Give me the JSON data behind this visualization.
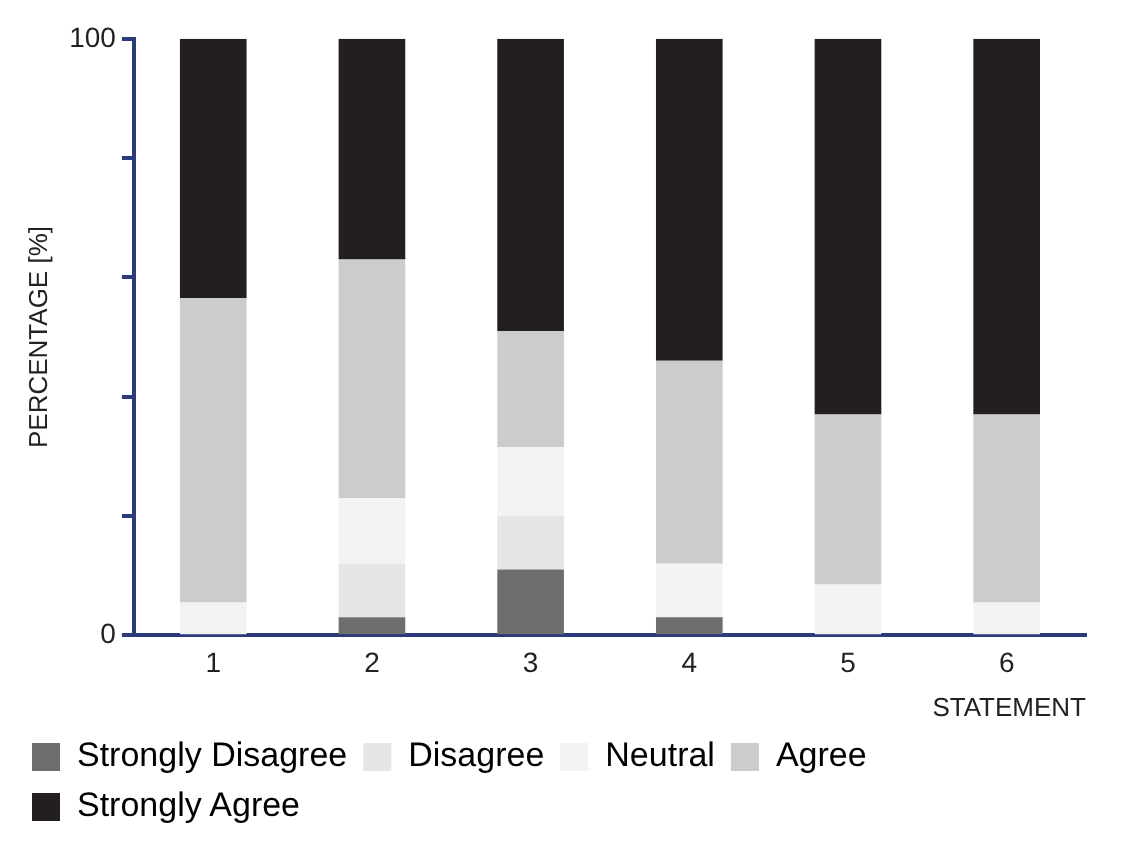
{
  "chart_data": {
    "type": "bar",
    "stacked": true,
    "xlabel": "STATEMENT",
    "ylabel": "PERCENTAGE [%]",
    "categories": [
      "1",
      "2",
      "3",
      "4",
      "5",
      "6"
    ],
    "series": [
      {
        "name": "Strongly Disagree",
        "color": "#6e6e6e",
        "values": [
          0,
          3,
          11,
          3,
          0,
          0
        ]
      },
      {
        "name": "Disagree",
        "color": "#e6e6e6",
        "values": [
          0,
          9,
          9,
          0,
          0,
          0
        ]
      },
      {
        "name": "Neutral",
        "color": "#f3f3f3",
        "values": [
          5.5,
          11,
          11.5,
          9,
          8.5,
          5.5
        ]
      },
      {
        "name": "Agree",
        "color": "#cccccc",
        "values": [
          51,
          40,
          19.5,
          34,
          28.5,
          31.5
        ]
      },
      {
        "name": "Strongly Agree",
        "color": "#231f20",
        "values": [
          43.5,
          37,
          49,
          54,
          63,
          63
        ]
      }
    ],
    "ylim": [
      0,
      100
    ],
    "yticks": [
      0,
      {
        "value": 20,
        "label": null
      },
      {
        "value": 40,
        "label": null
      },
      {
        "value": 60,
        "label": null
      },
      {
        "value": 80,
        "label": null
      },
      100
    ],
    "grid": false,
    "legend": "bottom"
  }
}
